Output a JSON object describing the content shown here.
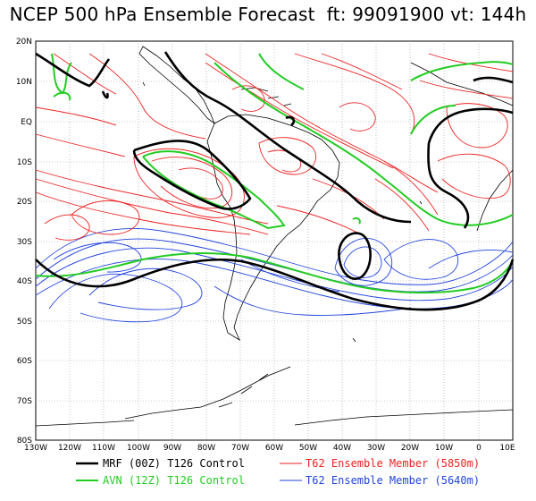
{
  "title": "NCEP 500 hPa Ensemble Forecast  ft: 99091900 vt: 144h",
  "lat_labels": [
    "20N",
    "10N",
    "EQ",
    "10S",
    "20S",
    "30S",
    "40S",
    "50S",
    "60S",
    "70S",
    "80S"
  ],
  "lon_labels": [
    "130W",
    "120W",
    "110W",
    "100W",
    "90W",
    "80W",
    "70W",
    "60W",
    "50W",
    "40W",
    "30W",
    "20W",
    "10W",
    "0",
    "10E"
  ],
  "legend": [
    {
      "label": "MRF (00Z) T126 Control",
      "color": "#000000"
    },
    {
      "label": "AVN (12Z) T126 Control",
      "color": "#22cc22"
    },
    {
      "label": "T62 Ensemble Member (5850m)",
      "color": "#ee2222"
    },
    {
      "label": "T62 Ensemble Member (5640m)",
      "color": "#2244dd"
    }
  ],
  "colors": {
    "mrf": "#000000",
    "avn": "#22cc22",
    "red": "#ee2222",
    "blue": "#2244dd",
    "coast": "#000000"
  }
}
